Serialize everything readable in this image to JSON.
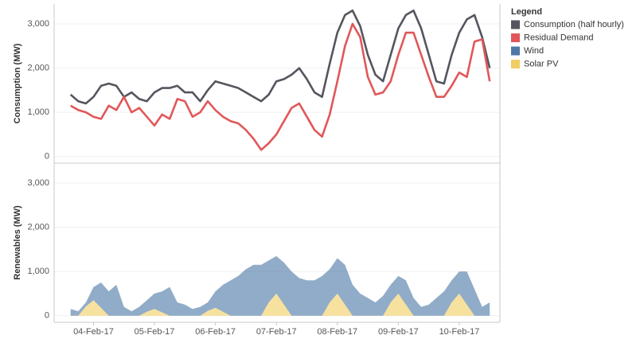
{
  "legend": {
    "title": "Legend"
  },
  "chart_data": [
    {
      "type": "line",
      "y_label": "Consumption (MW)",
      "x": [
        "2017-02-04T03:00",
        "2017-02-04T06:00",
        "2017-02-04T09:00",
        "2017-02-04T12:00",
        "2017-02-04T15:00",
        "2017-02-04T18:00",
        "2017-02-04T21:00",
        "2017-02-05T00:00",
        "2017-02-05T03:00",
        "2017-02-05T06:00",
        "2017-02-05T09:00",
        "2017-02-05T12:00",
        "2017-02-05T15:00",
        "2017-02-05T18:00",
        "2017-02-05T21:00",
        "2017-02-06T00:00",
        "2017-02-06T03:00",
        "2017-02-06T06:00",
        "2017-02-06T09:00",
        "2017-02-06T12:00",
        "2017-02-06T15:00",
        "2017-02-06T18:00",
        "2017-02-06T21:00",
        "2017-02-07T00:00",
        "2017-02-07T03:00",
        "2017-02-07T06:00",
        "2017-02-07T09:00",
        "2017-02-07T12:00",
        "2017-02-07T15:00",
        "2017-02-07T18:00",
        "2017-02-07T21:00",
        "2017-02-08T00:00",
        "2017-02-08T03:00",
        "2017-02-08T06:00",
        "2017-02-08T09:00",
        "2017-02-08T12:00",
        "2017-02-08T15:00",
        "2017-02-08T18:00",
        "2017-02-08T21:00",
        "2017-02-09T00:00",
        "2017-02-09T03:00",
        "2017-02-09T06:00",
        "2017-02-09T09:00",
        "2017-02-09T12:00",
        "2017-02-09T15:00",
        "2017-02-09T18:00",
        "2017-02-09T21:00",
        "2017-02-10T00:00",
        "2017-02-10T03:00",
        "2017-02-10T06:00",
        "2017-02-10T09:00",
        "2017-02-10T12:00",
        "2017-02-10T15:00",
        "2017-02-10T18:00",
        "2017-02-10T21:00",
        "2017-02-11T00:00"
      ],
      "xlim": [
        "2017-02-03T20:30",
        "2017-02-11T04:00"
      ],
      "ylim": [
        -150,
        3450
      ],
      "yticks": [
        0,
        {
          "value": 1000,
          "label": "1,000"
        },
        {
          "value": 2000,
          "label": "2,000"
        },
        {
          "value": 3000,
          "label": "3,000"
        }
      ],
      "grid": true,
      "series": [
        {
          "name": "Consumption (half hourly)",
          "color": "#55555e",
          "values": [
            1400,
            1250,
            1200,
            1350,
            1600,
            1650,
            1600,
            1350,
            1450,
            1300,
            1250,
            1450,
            1550,
            1550,
            1600,
            1450,
            1450,
            1250,
            1500,
            1700,
            1650,
            1600,
            1550,
            1450,
            1350,
            1250,
            1400,
            1700,
            1750,
            1850,
            2000,
            1750,
            1450,
            1350,
            2100,
            2800,
            3200,
            3300,
            2950,
            2300,
            1850,
            1700,
            2300,
            2900,
            3200,
            3300,
            2900,
            2300,
            1700,
            1650,
            2300,
            2800,
            3100,
            3200,
            2700,
            2000
          ]
        },
        {
          "name": "Residual Demand",
          "color": "#e15759",
          "values": [
            1150,
            1050,
            1000,
            900,
            850,
            1150,
            1050,
            1350,
            1000,
            1100,
            900,
            700,
            950,
            850,
            1300,
            1250,
            900,
            1000,
            1250,
            1050,
            900,
            800,
            750,
            600,
            400,
            150,
            300,
            500,
            800,
            1100,
            1200,
            900,
            600,
            450,
            950,
            1700,
            2500,
            3000,
            2700,
            1800,
            1400,
            1450,
            1700,
            2300,
            2800,
            2800,
            2300,
            1800,
            1350,
            1350,
            1600,
            1900,
            1800,
            2600,
            2650,
            1700
          ]
        }
      ]
    },
    {
      "type": "stacked_area",
      "y_label": "Renewables (MW)",
      "x": [
        "2017-02-04T03:00",
        "2017-02-04T06:00",
        "2017-02-04T09:00",
        "2017-02-04T12:00",
        "2017-02-04T15:00",
        "2017-02-04T18:00",
        "2017-02-04T21:00",
        "2017-02-05T00:00",
        "2017-02-05T03:00",
        "2017-02-05T06:00",
        "2017-02-05T09:00",
        "2017-02-05T12:00",
        "2017-02-05T15:00",
        "2017-02-05T18:00",
        "2017-02-05T21:00",
        "2017-02-06T00:00",
        "2017-02-06T03:00",
        "2017-02-06T06:00",
        "2017-02-06T09:00",
        "2017-02-06T12:00",
        "2017-02-06T15:00",
        "2017-02-06T18:00",
        "2017-02-06T21:00",
        "2017-02-07T00:00",
        "2017-02-07T03:00",
        "2017-02-07T06:00",
        "2017-02-07T09:00",
        "2017-02-07T12:00",
        "2017-02-07T15:00",
        "2017-02-07T18:00",
        "2017-02-07T21:00",
        "2017-02-08T00:00",
        "2017-02-08T03:00",
        "2017-02-08T06:00",
        "2017-02-08T09:00",
        "2017-02-08T12:00",
        "2017-02-08T15:00",
        "2017-02-08T18:00",
        "2017-02-08T21:00",
        "2017-02-09T00:00",
        "2017-02-09T03:00",
        "2017-02-09T06:00",
        "2017-02-09T09:00",
        "2017-02-09T12:00",
        "2017-02-09T15:00",
        "2017-02-09T18:00",
        "2017-02-09T21:00",
        "2017-02-10T00:00",
        "2017-02-10T03:00",
        "2017-02-10T06:00",
        "2017-02-10T09:00",
        "2017-02-10T12:00",
        "2017-02-10T15:00",
        "2017-02-10T18:00",
        "2017-02-10T21:00",
        "2017-02-11T00:00"
      ],
      "xlim": [
        "2017-02-03T20:30",
        "2017-02-11T04:00"
      ],
      "xticks": [
        {
          "value": "2017-02-04T12:00",
          "label": "04-Feb-17"
        },
        {
          "value": "2017-02-05T12:00",
          "label": "05-Feb-17"
        },
        {
          "value": "2017-02-06T12:00",
          "label": "06-Feb-17"
        },
        {
          "value": "2017-02-07T12:00",
          "label": "07-Feb-17"
        },
        {
          "value": "2017-02-08T12:00",
          "label": "08-Feb-17"
        },
        {
          "value": "2017-02-09T12:00",
          "label": "09-Feb-17"
        },
        {
          "value": "2017-02-10T12:00",
          "label": "10-Feb-17"
        }
      ],
      "ylim": [
        -150,
        3450
      ],
      "yticks": [
        0,
        {
          "value": 1000,
          "label": "1,000"
        },
        {
          "value": 2000,
          "label": "2,000"
        },
        {
          "value": 3000,
          "label": "3,000"
        }
      ],
      "grid": true,
      "series": [
        {
          "name": "Wind",
          "color": "#4e79a7",
          "values": [
            150,
            100,
            90,
            300,
            575,
            550,
            700,
            200,
            100,
            200,
            260,
            350,
            475,
            650,
            300,
            250,
            150,
            200,
            190,
            370,
            610,
            800,
            900,
            1050,
            1150,
            1150,
            950,
            850,
            950,
            1000,
            850,
            800,
            800,
            900,
            750,
            800,
            900,
            700,
            500,
            400,
            300,
            450,
            400,
            400,
            550,
            400,
            200,
            250,
            400,
            550,
            500,
            500,
            750,
            600,
            200,
            300
          ]
        },
        {
          "name": "Solar PV",
          "color": "#f1ce63",
          "values": [
            0,
            0,
            210,
            350,
            175,
            0,
            0,
            0,
            0,
            0,
            90,
            150,
            75,
            0,
            0,
            0,
            0,
            0,
            110,
            180,
            90,
            0,
            0,
            0,
            0,
            0,
            300,
            500,
            250,
            0,
            0,
            0,
            0,
            0,
            300,
            500,
            250,
            0,
            0,
            0,
            0,
            0,
            300,
            500,
            250,
            0,
            0,
            0,
            0,
            0,
            300,
            500,
            250,
            0,
            0,
            0
          ]
        }
      ]
    }
  ]
}
